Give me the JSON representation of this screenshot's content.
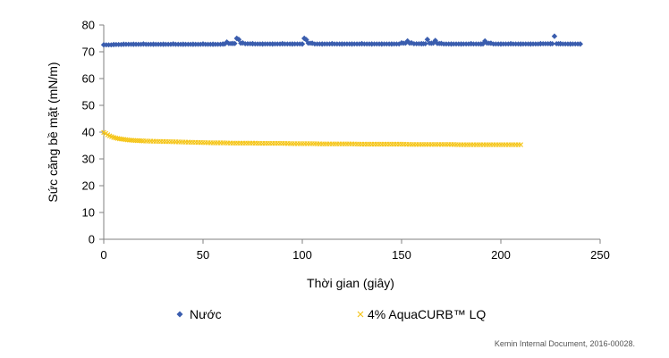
{
  "chart_data": {
    "type": "scatter",
    "xlabel": "Thời gian (giây)",
    "ylabel": "Sức căng bề mặt (mN/m)",
    "xlim": [
      0,
      250
    ],
    "ylim": [
      0,
      80
    ],
    "x_ticks": [
      0,
      50,
      100,
      150,
      200,
      250
    ],
    "y_ticks": [
      0,
      10,
      20,
      30,
      40,
      50,
      60,
      70,
      80
    ],
    "grid": false,
    "legend_position": "bottom",
    "series": [
      {
        "name": "Nước",
        "color": "#3a5dae",
        "marker": "diamond",
        "x": [
          0,
          5,
          10,
          15,
          20,
          25,
          30,
          35,
          40,
          45,
          50,
          55,
          60,
          62,
          65,
          67,
          68,
          70,
          75,
          80,
          85,
          90,
          95,
          100,
          101,
          102,
          105,
          110,
          115,
          120,
          125,
          130,
          135,
          140,
          145,
          150,
          153,
          155,
          160,
          163,
          165,
          167,
          170,
          175,
          180,
          185,
          190,
          192,
          195,
          200,
          205,
          210,
          215,
          220,
          225,
          227,
          230,
          235,
          240
        ],
        "values": [
          72.6,
          72.7,
          72.8,
          72.8,
          72.9,
          72.8,
          72.8,
          72.9,
          72.8,
          72.8,
          72.9,
          72.8,
          72.9,
          73.6,
          73.1,
          75.0,
          74.6,
          73.3,
          73.0,
          72.9,
          72.9,
          73.0,
          72.9,
          72.9,
          75.0,
          74.5,
          73.2,
          72.9,
          73.0,
          72.9,
          72.9,
          73.0,
          72.9,
          72.9,
          72.9,
          73.3,
          74.0,
          73.3,
          73.0,
          74.6,
          73.2,
          74.2,
          73.1,
          72.9,
          72.9,
          73.0,
          72.9,
          74.0,
          73.2,
          72.9,
          73.0,
          72.9,
          72.9,
          73.0,
          73.0,
          75.8,
          73.0,
          72.9,
          72.9
        ]
      },
      {
        "name": "4% AquaCURB™ LQ",
        "color": "#f5c518",
        "marker": "x",
        "x": [
          0,
          1,
          2,
          3,
          4,
          5,
          6,
          8,
          10,
          12,
          15,
          18,
          20,
          25,
          30,
          35,
          40,
          45,
          50,
          55,
          60,
          65,
          70,
          75,
          80,
          85,
          90,
          95,
          100,
          105,
          110,
          115,
          120,
          125,
          130,
          135,
          140,
          145,
          150,
          155,
          160,
          165,
          170,
          175,
          180,
          185,
          190,
          195,
          200,
          205,
          210
        ],
        "values": [
          39.9,
          39.5,
          39.0,
          38.6,
          38.3,
          38.0,
          37.8,
          37.5,
          37.3,
          37.1,
          36.9,
          36.8,
          36.7,
          36.6,
          36.5,
          36.4,
          36.3,
          36.2,
          36.1,
          36.0,
          36.0,
          35.9,
          35.9,
          35.9,
          35.8,
          35.8,
          35.8,
          35.7,
          35.7,
          35.7,
          35.6,
          35.6,
          35.6,
          35.6,
          35.5,
          35.5,
          35.5,
          35.5,
          35.5,
          35.4,
          35.4,
          35.4,
          35.4,
          35.4,
          35.3,
          35.3,
          35.3,
          35.3,
          35.3,
          35.3,
          35.3
        ]
      }
    ]
  },
  "footnote": "Kemin Internal Document, 2016-00028."
}
